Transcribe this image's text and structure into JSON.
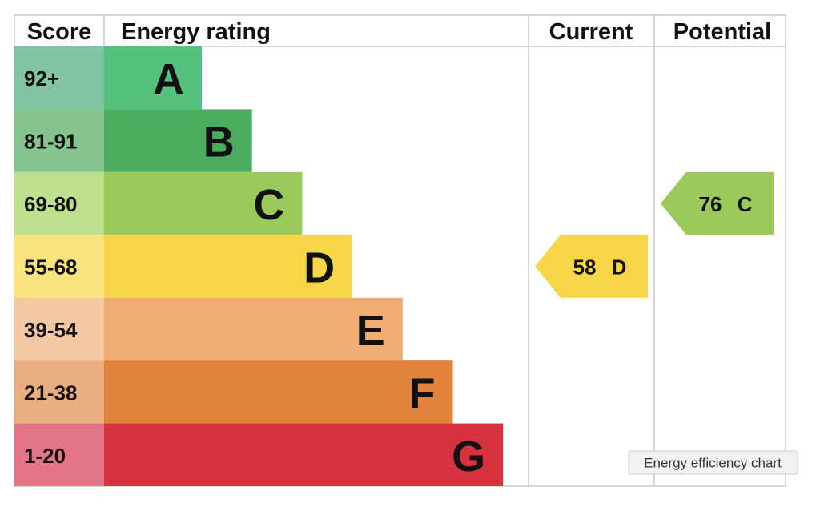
{
  "header": {
    "score": "Score",
    "energy_rating": "Energy rating",
    "current": "Current",
    "potential": "Potential"
  },
  "bands": [
    {
      "score": "92+",
      "letter": "A",
      "color": "#55c17f",
      "score_color": "#80c4a2"
    },
    {
      "score": "81-91",
      "letter": "B",
      "color": "#4bab5f",
      "score_color": "#86c48f"
    },
    {
      "score": "69-80",
      "letter": "C",
      "color": "#9bc95a",
      "score_color": "#bfe08f"
    },
    {
      "score": "55-68",
      "letter": "D",
      "color": "#f6d547",
      "score_color": "#f9e47d"
    },
    {
      "score": "39-54",
      "letter": "E",
      "color": "#f0ac72",
      "score_color": "#f3c9a3"
    },
    {
      "score": "21-38",
      "letter": "F",
      "color": "#e1833b",
      "score_color": "#ebae80"
    },
    {
      "score": "1-20",
      "letter": "G",
      "color": "#d63340",
      "score_color": "#e27588"
    }
  ],
  "current": {
    "score": 58,
    "letter": "D"
  },
  "potential": {
    "score": 76,
    "letter": "C"
  },
  "tooltip": "Energy efficiency chart"
}
